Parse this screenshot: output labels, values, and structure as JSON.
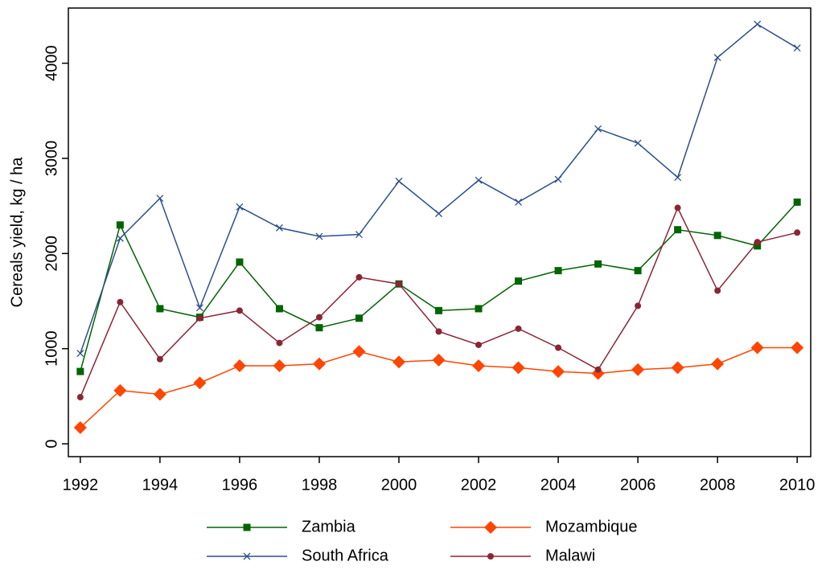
{
  "chart_data": {
    "type": "line",
    "y_label": "Cereals yield, kg / ha",
    "x": [
      1992,
      1993,
      1994,
      1995,
      1996,
      1997,
      1998,
      1999,
      2000,
      2001,
      2002,
      2003,
      2004,
      2005,
      2006,
      2007,
      2008,
      2009,
      2010
    ],
    "xlim": [
      1991.7,
      2010.34
    ],
    "xticks": [
      1992,
      1994,
      1996,
      1998,
      2000,
      2002,
      2004,
      2006,
      2008,
      2010
    ],
    "ylim": [
      -135,
      4580
    ],
    "yticks": [
      0,
      1000,
      2000,
      3000,
      4000
    ],
    "legend": "bottom",
    "series": [
      {
        "name": "Zambia",
        "color": "#006400",
        "marker": "square",
        "values": [
          760,
          2300,
          1420,
          1330,
          1910,
          1420,
          1220,
          1320,
          1680,
          1400,
          1420,
          1710,
          1820,
          1890,
          1820,
          2250,
          2190,
          2080,
          2540
        ]
      },
      {
        "name": "South Africa",
        "color": "#2b4f8a",
        "marker": "x",
        "values": [
          950,
          2160,
          2580,
          1430,
          2490,
          2270,
          2180,
          2200,
          2760,
          2420,
          2770,
          2540,
          2780,
          3310,
          3160,
          2800,
          4060,
          4410,
          4160
        ]
      },
      {
        "name": "Mozambique",
        "color": "#ff4500",
        "marker": "diamond",
        "values": [
          170,
          560,
          520,
          640,
          820,
          820,
          840,
          970,
          860,
          880,
          820,
          800,
          760,
          740,
          780,
          800,
          840,
          1010,
          1010
        ]
      },
      {
        "name": "Malawi",
        "color": "#8b2535",
        "marker": "circle",
        "values": [
          490,
          1490,
          890,
          1320,
          1400,
          1060,
          1330,
          1750,
          1680,
          1180,
          1040,
          1210,
          1010,
          780,
          1450,
          2480,
          1610,
          2120,
          2220
        ]
      }
    ]
  }
}
